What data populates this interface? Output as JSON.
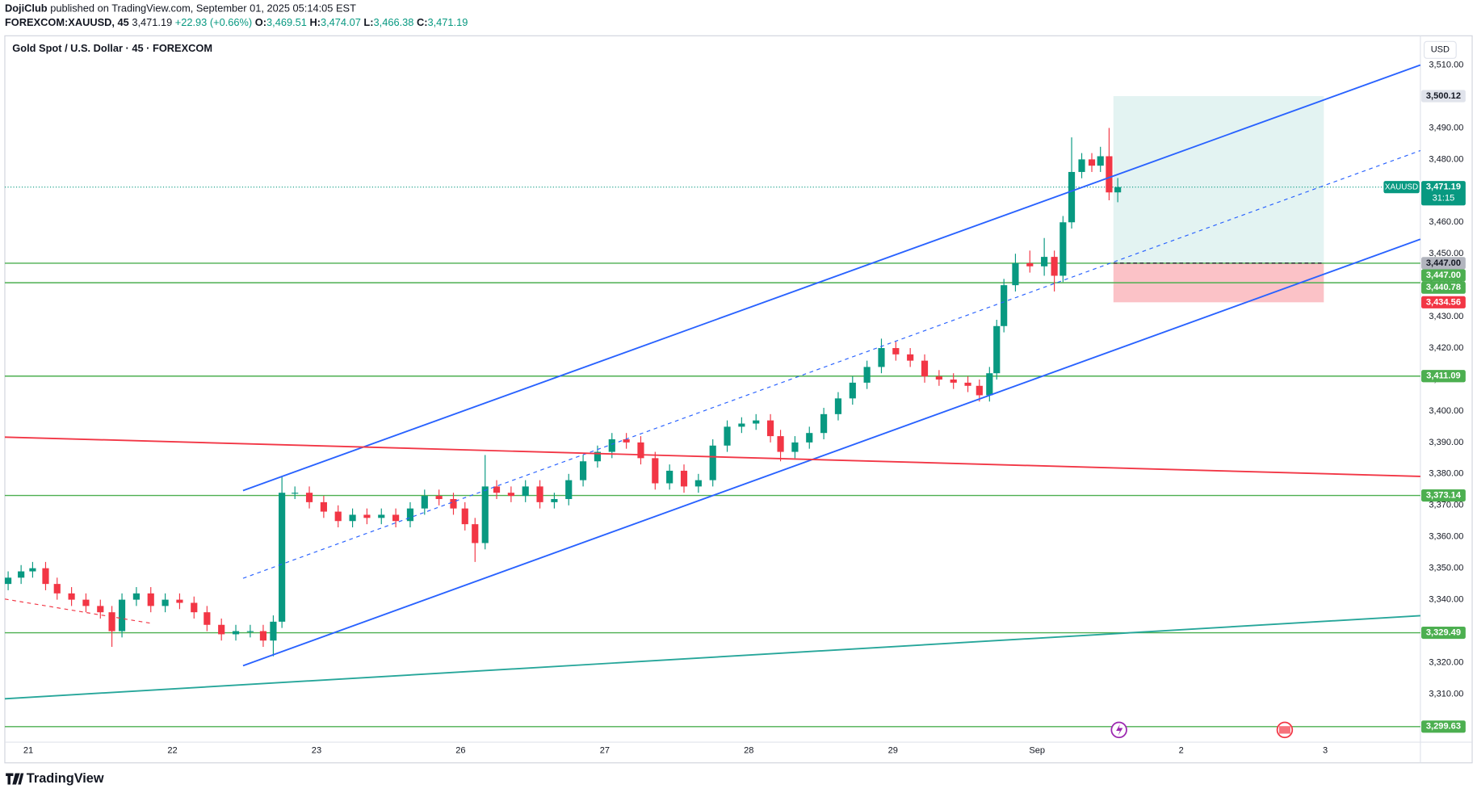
{
  "header": {
    "publisher": "DojiClub",
    "published": "published on TradingView.com, September 01, 2025 05:14:05 EST",
    "symbol": "FOREXCOM:XAUUSD, 45",
    "last": "3,471.19",
    "change": "+22.93 (+0.66%)",
    "ohlc": [
      {
        "key": "O:",
        "value": "3,469.51"
      },
      {
        "key": "H:",
        "value": "3,474.07"
      },
      {
        "key": "L:",
        "value": "3,466.38"
      },
      {
        "key": "C:",
        "value": "3,471.19"
      }
    ]
  },
  "chart_data": {
    "type": "candlestick",
    "title": "Gold Spot / U.S. Dollar · 45 · FOREXCOM",
    "currency": "USD",
    "symbol_tag": "XAUUSD",
    "countdown": "31:15",
    "up_color": "#089981",
    "down_color": "#f23645",
    "grid": false,
    "xlim": [
      -0.163,
      9.66
    ],
    "xticks": [
      {
        "value": 0,
        "label": "21"
      },
      {
        "value": 1,
        "label": "22"
      },
      {
        "value": 2,
        "label": "23"
      },
      {
        "value": 3,
        "label": "26"
      },
      {
        "value": 4,
        "label": "27"
      },
      {
        "value": 5,
        "label": "28"
      },
      {
        "value": 6,
        "label": "29"
      },
      {
        "value": 7,
        "label": "Sep"
      },
      {
        "value": 8,
        "label": "2"
      },
      {
        "value": 9,
        "label": "3"
      }
    ],
    "ylim": [
      3294.7,
      3519.3
    ],
    "yticks": [
      {
        "value": 3310,
        "label": "3,310.00"
      },
      {
        "value": 3320,
        "label": "3,320.00"
      },
      {
        "value": 3330,
        "label": "3,330.00"
      },
      {
        "value": 3340,
        "label": "3,340.00"
      },
      {
        "value": 3350,
        "label": "3,350.00"
      },
      {
        "value": 3360,
        "label": "3,360.00"
      },
      {
        "value": 3370,
        "label": "3,370.00"
      },
      {
        "value": 3380,
        "label": "3,380.00"
      },
      {
        "value": 3390,
        "label": "3,390.00"
      },
      {
        "value": 3400,
        "label": "3,400.00"
      },
      {
        "value": 3410,
        "label": "3,410.00"
      },
      {
        "value": 3420,
        "label": "3,420.00"
      },
      {
        "value": 3430,
        "label": "3,430.00"
      },
      {
        "value": 3440,
        "label": "3,440.00"
      },
      {
        "value": 3450,
        "label": "3,450.00"
      },
      {
        "value": 3460,
        "label": "3,460.00"
      },
      {
        "value": 3470,
        "label": "3,470.00"
      },
      {
        "value": 3480,
        "label": "3,480.00"
      },
      {
        "value": 3490,
        "label": "3,490.00"
      },
      {
        "value": 3500,
        "label": "3,500.00"
      },
      {
        "value": 3510,
        "label": "3,510.00"
      }
    ],
    "x": [
      -0.14,
      -0.05,
      0.03,
      0.12,
      0.2,
      0.3,
      0.4,
      0.5,
      0.58,
      0.65,
      0.75,
      0.85,
      0.95,
      1.05,
      1.15,
      1.24,
      1.34,
      1.44,
      1.54,
      1.63,
      1.7,
      1.76,
      1.85,
      1.95,
      2.05,
      2.15,
      2.25,
      2.35,
      2.45,
      2.55,
      2.65,
      2.75,
      2.85,
      2.95,
      3.03,
      3.1,
      3.17,
      3.25,
      3.35,
      3.45,
      3.55,
      3.65,
      3.75,
      3.85,
      3.95,
      4.05,
      4.15,
      4.25,
      4.35,
      4.45,
      4.55,
      4.65,
      4.75,
      4.85,
      4.95,
      5.05,
      5.15,
      5.22,
      5.32,
      5.42,
      5.52,
      5.62,
      5.72,
      5.82,
      5.92,
      6.02,
      6.12,
      6.22,
      6.32,
      6.42,
      6.52,
      6.6,
      6.67,
      6.72,
      6.77,
      6.85,
      6.95,
      7.05,
      7.12,
      7.18,
      7.24,
      7.31,
      7.38,
      7.44,
      7.5,
      7.56
    ],
    "open": [
      3345,
      3347,
      3349,
      3350,
      3345,
      3342,
      3340,
      3338,
      3336,
      3330,
      3340,
      3342,
      3338,
      3340,
      3339,
      3336,
      3332,
      3329,
      3330,
      3330,
      3327,
      3333,
      3374,
      3374,
      3371,
      3368,
      3365,
      3367,
      3366,
      3367,
      3365,
      3369,
      3373,
      3372,
      3369,
      3364,
      3358,
      3376,
      3374,
      3373,
      3376,
      3371,
      3372,
      3378,
      3384,
      3387,
      3391,
      3390,
      3385,
      3377,
      3381,
      3376,
      3378,
      3389,
      3395,
      3396,
      3397,
      3392,
      3387,
      3390,
      3393,
      3399,
      3404,
      3409,
      3414,
      3420,
      3418,
      3416,
      3411,
      3410,
      3409,
      3408,
      3405,
      3412,
      3427,
      3440,
      3447,
      3446,
      3449,
      3443,
      3460,
      3476,
      3480,
      3478,
      3481,
      3469.51
    ],
    "high": [
      3349,
      3351,
      3352,
      3352,
      3347,
      3344,
      3342,
      3340,
      3338,
      3342,
      3344,
      3344,
      3342,
      3342,
      3341,
      3338,
      3334,
      3332,
      3332,
      3332,
      3335,
      3379,
      3376,
      3376,
      3373,
      3370,
      3369,
      3369,
      3369,
      3369,
      3371,
      3375,
      3375,
      3374,
      3371,
      3366,
      3386,
      3378,
      3376,
      3378,
      3378,
      3374,
      3380,
      3386,
      3389,
      3393,
      3393,
      3392,
      3387,
      3383,
      3383,
      3380,
      3391,
      3397,
      3398,
      3399,
      3399,
      3394,
      3392,
      3395,
      3401,
      3406,
      3411,
      3416,
      3423,
      3422,
      3420,
      3418,
      3413,
      3412,
      3411,
      3410,
      3414,
      3429,
      3442,
      3450,
      3451,
      3455,
      3451,
      3462,
      3487,
      3482,
      3482,
      3484,
      3490,
      3474.07
    ],
    "low": [
      3343,
      3345,
      3347,
      3343,
      3340,
      3338,
      3336,
      3334,
      3325,
      3328,
      3338,
      3336,
      3336,
      3337,
      3334,
      3330,
      3327,
      3327,
      3328,
      3325,
      3322,
      3331,
      3372,
      3369,
      3366,
      3363,
      3363,
      3364,
      3364,
      3363,
      3363,
      3367,
      3370,
      3367,
      3362,
      3352,
      3356,
      3372,
      3371,
      3371,
      3369,
      3369,
      3370,
      3376,
      3382,
      3385,
      3388,
      3383,
      3375,
      3375,
      3374,
      3374,
      3376,
      3387,
      3393,
      3394,
      3390,
      3384,
      3385,
      3388,
      3391,
      3397,
      3402,
      3407,
      3412,
      3416,
      3414,
      3409,
      3408,
      3407,
      3406,
      3403,
      3403,
      3410,
      3425,
      3438,
      3444,
      3443,
      3438,
      3441,
      3458,
      3474,
      3476,
      3476,
      3467,
      3466.38
    ],
    "close": [
      3347,
      3349,
      3350,
      3345,
      3342,
      3340,
      3338,
      3336,
      3330,
      3340,
      3342,
      3338,
      3340,
      3339,
      3336,
      3332,
      3329,
      3330,
      3330,
      3327,
      3333,
      3374,
      3374,
      3371,
      3368,
      3365,
      3367,
      3366,
      3367,
      3365,
      3369,
      3373,
      3372,
      3369,
      3364,
      3358,
      3376,
      3374,
      3373,
      3376,
      3371,
      3372,
      3378,
      3384,
      3387,
      3391,
      3390,
      3385,
      3377,
      3381,
      3376,
      3378,
      3389,
      3395,
      3396,
      3397,
      3392,
      3387,
      3390,
      3393,
      3399,
      3404,
      3409,
      3414,
      3420,
      3418,
      3416,
      3411,
      3410,
      3409,
      3408,
      3405,
      3412,
      3427,
      3440,
      3447,
      3446,
      3449,
      3443,
      3460,
      3476,
      3480,
      3478,
      3481,
      3469.5,
      3471.19
    ],
    "trendlines": [
      {
        "x": [
          1.49,
          9.66
        ],
        "y": [
          3374.7,
          3510
        ],
        "color": "#2962ff",
        "dash": false
      },
      {
        "x": [
          1.49,
          9.66
        ],
        "y": [
          3346.8,
          3482.8
        ],
        "color": "#2962ff",
        "dash": true
      },
      {
        "x": [
          1.49,
          9.66
        ],
        "y": [
          3319.0,
          3454.6
        ],
        "color": "#2962ff",
        "dash": false
      },
      {
        "x": [
          -0.163,
          9.66
        ],
        "y": [
          3391.7,
          3379.2
        ],
        "color": "#f23645",
        "dash": false
      },
      {
        "x": [
          -0.163,
          9.66
        ],
        "y": [
          3308.5,
          3334.9
        ],
        "color": "#26a69a",
        "dash": false
      },
      {
        "x": [
          -0.163,
          0.85
        ],
        "y": [
          3340.2,
          3332.5
        ],
        "color": "#f23645",
        "dash": true
      }
    ],
    "position": {
      "x": [
        7.53,
        8.99
      ],
      "entry": 3447,
      "target": 3500.12,
      "stop": 3434.56
    },
    "price_levels": [
      {
        "value": 3500.12,
        "label": "3,500.12",
        "color": "#e0e3eb",
        "line": false
      },
      {
        "value": 3471.19,
        "label": "3,471.19",
        "color": "#089981",
        "line": false
      },
      {
        "value": 3447,
        "label": "3,447.00",
        "color": "#b2b5be",
        "line": false
      },
      {
        "value": 3447,
        "label": "3,447.00",
        "color": "#4caf50",
        "line": true
      },
      {
        "value": 3440.78,
        "label": "3,440.78",
        "color": "#4caf50",
        "line": true
      },
      {
        "value": 3434.56,
        "label": "3,434.56",
        "color": "#f23645",
        "line": false
      },
      {
        "value": 3411.09,
        "label": "3,411.09",
        "color": "#4caf50",
        "line": true
      },
      {
        "value": 3373.14,
        "label": "3,373.14",
        "color": "#4caf50",
        "line": true
      },
      {
        "value": 3329.49,
        "label": "3,329.49",
        "color": "#4caf50",
        "line": true
      },
      {
        "value": 3299.63,
        "label": "3,299.63",
        "color": "#4caf50",
        "line": true
      }
    ]
  },
  "footer": {
    "brand": "TradingView"
  }
}
